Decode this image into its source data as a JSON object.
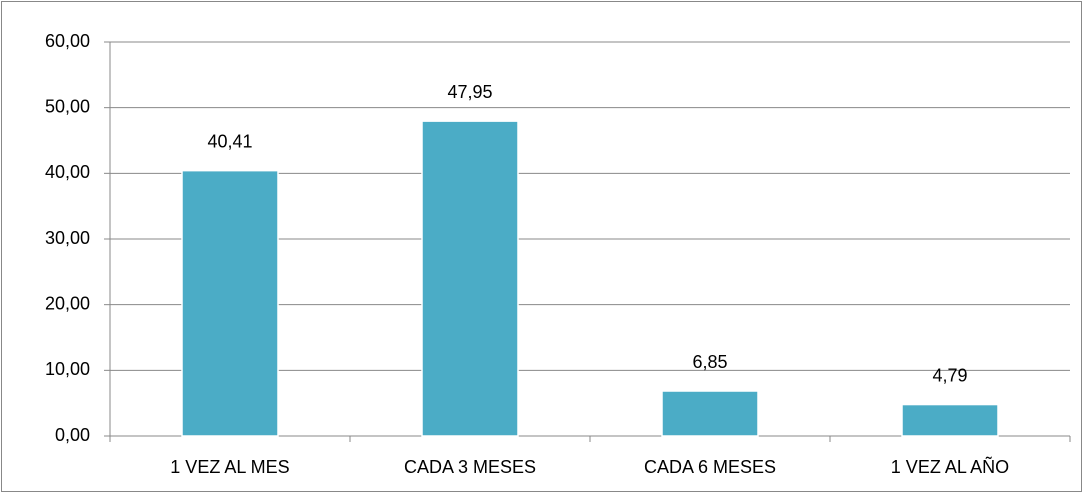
{
  "chart_data": {
    "type": "bar",
    "categories": [
      "1 VEZ AL MES",
      "CADA 3 MESES",
      "CADA 6 MESES",
      "1 VEZ AL AÑO"
    ],
    "values": [
      40.41,
      47.95,
      6.85,
      4.79
    ],
    "value_labels": [
      "40,41",
      "47,95",
      "6,85",
      "4,79"
    ],
    "color": "#4bacc6",
    "ylim": [
      0,
      60
    ],
    "yticks": [
      {
        "value": 0,
        "label": "0,00"
      },
      {
        "value": 10,
        "label": "10,00"
      },
      {
        "value": 20,
        "label": "20,00"
      },
      {
        "value": 30,
        "label": "30,00"
      },
      {
        "value": 40,
        "label": "40,00"
      },
      {
        "value": 50,
        "label": "50,00"
      },
      {
        "value": 60,
        "label": "60,00"
      }
    ],
    "grid": true
  }
}
